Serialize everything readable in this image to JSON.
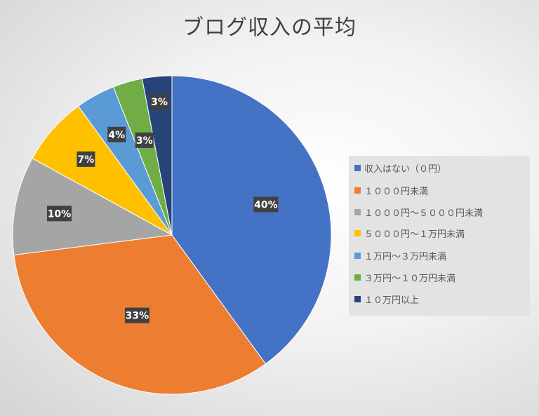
{
  "chart_data": {
    "type": "pie",
    "title": "ブログ収入の平均",
    "categories": [
      "収入はない（０円）",
      "１０００円未満",
      "１０００円～５０００円未満",
      "５０００円～１万円未満",
      "１万円～３万円未満",
      "３万円～１０万円未満",
      "１０万円以上"
    ],
    "values": [
      40,
      33,
      10,
      7,
      4,
      3,
      3
    ],
    "labels": [
      "40%",
      "33%",
      "10%",
      "7%",
      "4%",
      "3%",
      "3%"
    ],
    "colors": [
      "#4472c4",
      "#ed7d31",
      "#a5a5a5",
      "#ffc000",
      "#5b9bd5",
      "#70ad47",
      "#264478"
    ],
    "legend_position": "right"
  }
}
